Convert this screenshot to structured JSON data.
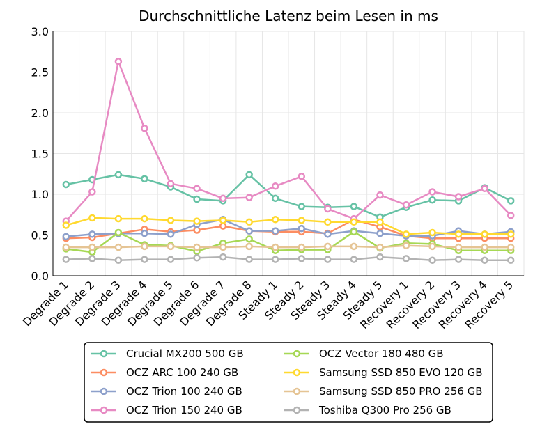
{
  "chart_data": {
    "type": "line",
    "title": "Durchschnittliche Latenz beim Lesen in ms",
    "xlabel": "",
    "ylabel": "",
    "ylim": [
      0.0,
      3.0
    ],
    "yticks": [
      "0.0",
      "0.5",
      "1.0",
      "1.5",
      "2.0",
      "2.5",
      "3.0"
    ],
    "grid": true,
    "legend_position": "bottom",
    "categories": [
      "Degrade 1",
      "Degrade 2",
      "Degrade 3",
      "Degrade 4",
      "Degrade 5",
      "Degrade 6",
      "Degrade 7",
      "Degrade 8",
      "Steady 1",
      "Steady 2",
      "Steady 3",
      "Steady 4",
      "Steady 5",
      "Recovery 1",
      "Recovery 2",
      "Recovery 3",
      "Recovery 4",
      "Recovery 5"
    ],
    "series": [
      {
        "name": "Crucial MX200 500 GB",
        "color": "#66c2a5",
        "values": [
          1.12,
          1.18,
          1.24,
          1.19,
          1.09,
          0.94,
          0.92,
          1.24,
          0.95,
          0.85,
          0.84,
          0.85,
          0.72,
          0.84,
          0.93,
          0.92,
          1.08,
          0.92
        ]
      },
      {
        "name": "OCZ ARC 100 240 GB",
        "color": "#fc8d62",
        "values": [
          0.46,
          0.47,
          0.52,
          0.57,
          0.54,
          0.56,
          0.61,
          0.55,
          0.54,
          0.54,
          0.52,
          0.69,
          0.6,
          0.49,
          0.46,
          0.46,
          0.46,
          0.46
        ]
      },
      {
        "name": "OCZ Trion 100 240 GB",
        "color": "#8da0cb",
        "values": [
          0.48,
          0.51,
          0.52,
          0.52,
          0.51,
          0.63,
          0.69,
          0.55,
          0.55,
          0.58,
          0.51,
          0.55,
          0.52,
          0.49,
          0.49,
          0.55,
          0.51,
          0.54
        ]
      },
      {
        "name": "OCZ Trion 150 240 GB",
        "color": "#e78ac3",
        "values": [
          0.67,
          1.03,
          2.63,
          1.81,
          1.13,
          1.07,
          0.95,
          0.96,
          1.1,
          1.22,
          0.82,
          0.7,
          0.99,
          0.87,
          1.03,
          0.97,
          1.07,
          0.74
        ]
      },
      {
        "name": "OCZ Vector 180 480 GB",
        "color": "#a6d854",
        "values": [
          0.33,
          0.29,
          0.53,
          0.38,
          0.37,
          0.3,
          0.4,
          0.45,
          0.31,
          0.32,
          0.32,
          0.54,
          0.34,
          0.4,
          0.39,
          0.31,
          0.31,
          0.31
        ]
      },
      {
        "name": "Samsung SSD 850 EVO 120 GB",
        "color": "#ffd92f",
        "values": [
          0.62,
          0.71,
          0.7,
          0.7,
          0.68,
          0.67,
          0.68,
          0.66,
          0.69,
          0.68,
          0.66,
          0.66,
          0.66,
          0.51,
          0.53,
          0.51,
          0.51,
          0.51
        ]
      },
      {
        "name": "Samsung SSD 850 PRO 256 GB",
        "color": "#e5c494",
        "values": [
          0.35,
          0.35,
          0.35,
          0.36,
          0.36,
          0.35,
          0.35,
          0.36,
          0.35,
          0.35,
          0.36,
          0.36,
          0.35,
          0.37,
          0.36,
          0.35,
          0.35,
          0.35
        ]
      },
      {
        "name": "Toshiba Q300 Pro 256 GB",
        "color": "#b3b3b3",
        "values": [
          0.2,
          0.21,
          0.19,
          0.2,
          0.2,
          0.22,
          0.23,
          0.2,
          0.2,
          0.21,
          0.2,
          0.2,
          0.23,
          0.21,
          0.19,
          0.2,
          0.19,
          0.19
        ]
      }
    ]
  }
}
